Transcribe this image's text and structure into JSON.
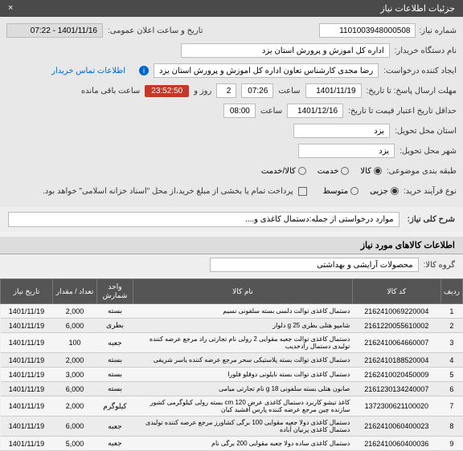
{
  "header": {
    "title": "جزئیات اطلاعات نیاز",
    "close": "×"
  },
  "form": {
    "req_no_lbl": "شماره نیاز:",
    "req_no": "1101003948000508",
    "ann_lbl": "تاریخ و ساعت اعلان عمومی:",
    "ann_val": "1401/11/16 - 07:22",
    "org_lbl": "نام دستگاه خریدار:",
    "org_val": "اداره کل اموزش و پرورش استان یزد",
    "creator_lbl": "ایجاد کننده درخواست:",
    "creator_val": "رضا مجدی کارشناس تعاون اداره کل اموزش و پرورش استان یزد",
    "contact_link": "اطلاعات تماس خریدار",
    "deadline_lbl": "مهلت ارسال پاسخ: تا تاریخ:",
    "deadline_date": "1401/11/19",
    "time_lbl": "ساعت",
    "deadline_time": "07:26",
    "and_lbl": "و",
    "days_lbl": "روز و",
    "days_val": "2",
    "timer": "23:52:50",
    "remain_lbl": "ساعت باقی مانده",
    "valid_lbl": "حداقل تاریخ اعتبار قیمت تا تاریخ:",
    "valid_date": "1401/12/16",
    "valid_time": "08:00",
    "state_lbl": "استان محل تحویل:",
    "state_val": "یزد",
    "city_lbl": "شهر محل تحویل:",
    "city_val": "یزد",
    "cat_lbl": "طبقه بندی موضوعی:",
    "cat_opts": {
      "a": "کالا",
      "b": "خدمت",
      "c": "کالا/خدمت"
    },
    "buy_lbl": "نوع فرآیند خرید:",
    "buy_opts": {
      "a": "جزیی",
      "b": "متوسط"
    },
    "pay_note": "پرداخت تمام یا بخشی از مبلغ خرید،از محل \"اسناد خزانه اسلامی\" خواهد بود.",
    "desc_title": "شرح کلی نیاز:",
    "desc_val": "موارد درخواستی از جمله:دستمال کاغذی و....",
    "items_title": "اطلاعات کالاهای مورد نیاز",
    "group_lbl": "گروه کالا:",
    "group_val": "محصولات آرایشی و بهداشتی"
  },
  "table": {
    "cols": [
      "ردیف",
      "کد کالا",
      "نام کالا",
      "واحد شمارش",
      "تعداد / مقدار",
      "تاریخ نیاز"
    ],
    "rows": [
      [
        "1",
        "2162410069220004",
        "دستمال کاغذی توالت دلسی بسته سلفونی نسیم",
        "بسته",
        "2,000",
        "1401/11/19"
      ],
      [
        "2",
        "2161220055610002",
        "شامپو هتلی بطری 25 g دلوار",
        "بطری",
        "6,000",
        "1401/11/19"
      ],
      [
        "3",
        "2162410064660007",
        "دستمال کاغذی توالت جعبه مقوایی 2 رولی نام تجارتی راد مرجع عرضه کننده تولیدی دستمال رادخدیب",
        "جعبه",
        "100",
        "1401/11/19"
      ],
      [
        "4",
        "2162410188520004",
        "دستمال کاغذی توالت بسته پلاستیکی سحر مرجع عرضه کننده یاسر شریفی",
        "بسته",
        "2,000",
        "1401/11/19"
      ],
      [
        "5",
        "2162410020450009",
        "دستمال کاغذی توالت بسته نایلونی دوقلو فلورا",
        "بسته",
        "3,000",
        "1401/11/19"
      ],
      [
        "6",
        "2161230134240007",
        "صابون هتلی بسته سلفونی 18 g نام تجارتی میامی",
        "بسته",
        "6,000",
        "1401/11/19"
      ],
      [
        "7",
        "1372300621100020",
        "کاغذ تیشو کاربرد دستمال کاغذی عرض 120 cm بسته رولی کیلوگرمی کشور سازنده چین مرجع عرضه کننده پارس آفشید کیان",
        "کیلوگرم",
        "2,000",
        "1401/11/19"
      ],
      [
        "8",
        "2162410060400023",
        "دستمال کاغذی دولا جعبه مقوایی 100 برگی کشاورز مرجع عرضه کننده تولیدی دستمال کاغذی پرنیان آباده",
        "جعبه",
        "6,000",
        "1401/11/19"
      ],
      [
        "9",
        "2162410060400036",
        "دستمال کاغذی ساده دولا جعبه مقوایی 200 برگی نام",
        "جعبه",
        "5,000",
        "1401/11/19"
      ]
    ]
  }
}
